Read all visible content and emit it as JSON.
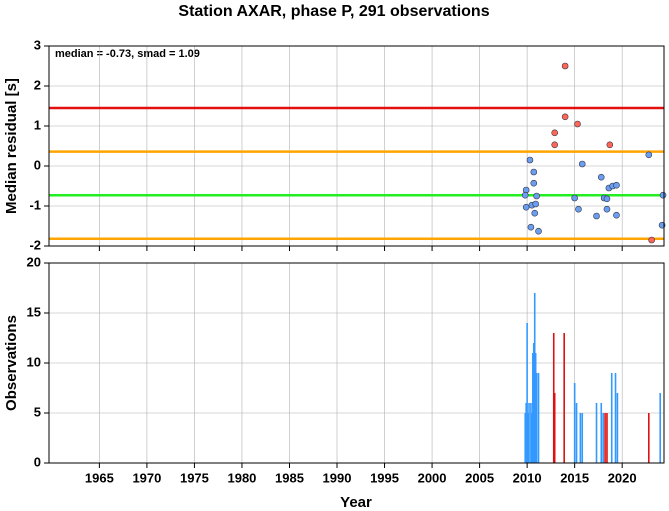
{
  "chart_data": [
    {
      "type": "scatter",
      "title": "Station AXAR, phase P, 291 observations",
      "y_label": "Median residual [s]",
      "annotation": "median = -0.73, smad = 1.09",
      "xlim": [
        1959.7,
        2024.4
      ],
      "xticks": [
        1965,
        1970,
        1975,
        1980,
        1985,
        1990,
        1995,
        2000,
        2005,
        2010,
        2015,
        2020
      ],
      "ylim": [
        -2,
        3
      ],
      "yticks": [
        -2,
        -1,
        0,
        1,
        2,
        3
      ],
      "grid": true,
      "reference_lines": [
        {
          "value": 1.45,
          "color": "#e41010"
        },
        {
          "value": 0.36,
          "color": "#ffa500"
        },
        {
          "value": -0.73,
          "color": "#22ee22"
        },
        {
          "value": -1.82,
          "color": "#ffa500"
        }
      ],
      "series": [
        {
          "color": "#6a9ef0",
          "x": [
            2009.9,
            2009.8,
            2009.9,
            2010.3,
            2010.5,
            2010.4,
            2010.7,
            2010.7,
            2010.8,
            2010.9,
            2011.0,
            2011.2,
            2015.0,
            2015.4,
            2015.8,
            2017.3,
            2017.8,
            2018.1,
            2018.4,
            2018.4,
            2018.6,
            2019.0,
            2019.4,
            2019.4,
            2022.8,
            2024.3,
            2024.2
          ],
          "values": [
            -0.6,
            -0.73,
            -1.03,
            0.15,
            -0.98,
            -1.53,
            -0.15,
            -0.43,
            -1.18,
            -0.95,
            -0.75,
            -1.63,
            -0.8,
            -1.08,
            0.05,
            -1.25,
            -0.28,
            -0.8,
            -0.82,
            -1.08,
            -0.55,
            -0.5,
            -0.48,
            -1.23,
            0.28,
            -0.73,
            -1.48
          ]
        },
        {
          "color": "#ff6655",
          "x": [
            2012.9,
            2012.9,
            2014.0,
            2014.0,
            2015.3,
            2018.7,
            2023.1
          ],
          "values": [
            0.83,
            0.53,
            2.5,
            1.23,
            1.05,
            0.53,
            -1.85
          ]
        }
      ]
    },
    {
      "type": "bar",
      "x_label": "Year",
      "y_label": "Observations",
      "xlim": [
        1959.7,
        2024.4
      ],
      "xticks": [
        1965,
        1970,
        1975,
        1980,
        1985,
        1990,
        1995,
        2000,
        2005,
        2010,
        2015,
        2020
      ],
      "ylim": [
        0,
        20
      ],
      "yticks": [
        0,
        5,
        10,
        15,
        20
      ],
      "grid": true,
      "series": [
        {
          "color": "#3399ff",
          "x": [
            2009.8,
            2009.9,
            2010.0,
            2010.1,
            2010.2,
            2010.4,
            2010.5,
            2010.6,
            2010.7,
            2010.8,
            2010.9,
            2011.0,
            2011.2,
            2015.0,
            2015.2,
            2015.6,
            2015.8,
            2017.3,
            2017.8,
            2018.0,
            2018.9,
            2019.3,
            2019.5,
            2024.0
          ],
          "values": [
            5,
            6,
            14,
            5,
            6,
            6,
            5,
            11,
            12,
            17,
            11,
            9,
            9,
            8,
            6,
            5,
            5,
            6,
            6,
            5,
            9,
            9,
            7,
            7
          ]
        },
        {
          "color": "#dd1111",
          "x": [
            2012.8,
            2012.9,
            2013.9,
            2018.2,
            2018.4,
            2022.8
          ],
          "values": [
            13,
            7,
            13,
            5,
            5,
            5
          ]
        }
      ]
    }
  ]
}
